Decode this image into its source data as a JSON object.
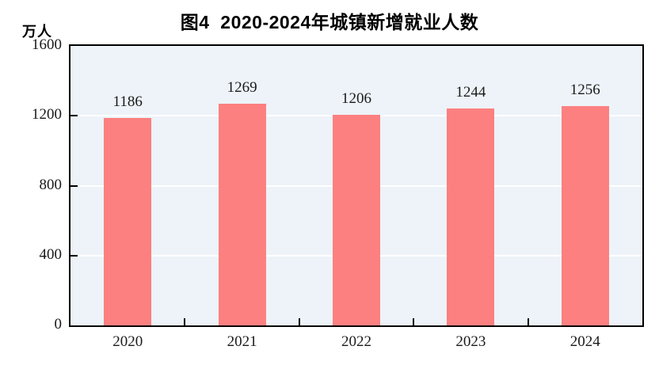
{
  "title": "图4  2020-2024年城镇新增就业人数",
  "y_axis_unit": "万人",
  "colors": {
    "bar": "#FC8080",
    "plot_background": "#EDF3F8",
    "gridline": "#FFFFFF",
    "axis": "#000000",
    "text": "#1A1A1A"
  },
  "chart_data": {
    "type": "bar",
    "title": "图4  2020-2024年城镇新增就业人数",
    "categories": [
      "2020",
      "2021",
      "2022",
      "2023",
      "2024"
    ],
    "values": [
      1186,
      1269,
      1206,
      1244,
      1256
    ],
    "value_labels_shown": true,
    "xlabel": "",
    "ylabel": "万人",
    "ylim": [
      0,
      1600
    ],
    "yticks": [
      0,
      400,
      800,
      1200,
      1600
    ],
    "gridlines_at": [
      400,
      800,
      1200
    ],
    "legend": "none",
    "bar_color": "#FC8080",
    "plot_bg_color": "#EDF3F8"
  }
}
